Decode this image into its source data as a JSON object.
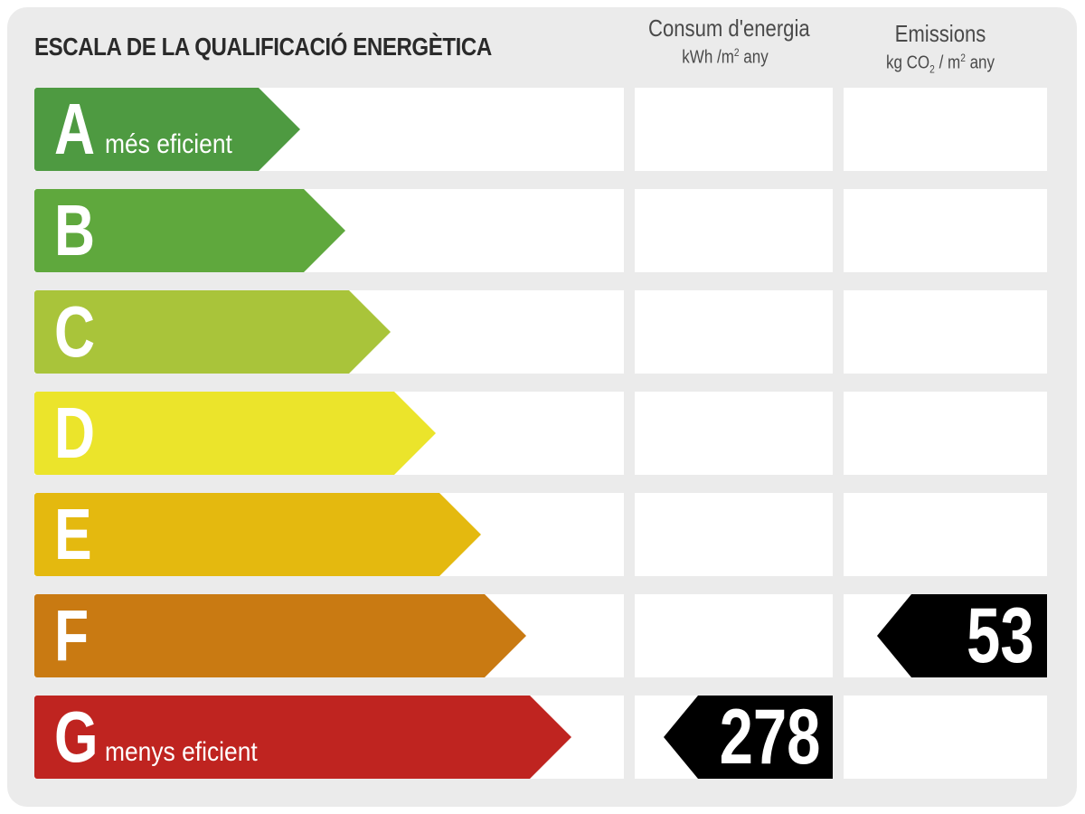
{
  "title": "ESCALA DE LA QUALIFICACIÓ ENERGÈTICA",
  "columns": {
    "consum": {
      "title": "Consum d'energia",
      "unit_pre": "kWh /m",
      "unit_sup": "2",
      "unit_post": " any"
    },
    "emissions": {
      "title": "Emissions",
      "unit_pre": "kg CO",
      "unit_sub": "2",
      "unit_mid": " / m",
      "unit_sup": "2",
      "unit_post": " any"
    }
  },
  "chart_data": {
    "type": "bar",
    "categories": [
      "A",
      "B",
      "C",
      "D",
      "E",
      "F",
      "G"
    ],
    "category_sublabels": {
      "A": "més eficient",
      "G": "menys eficient"
    },
    "colors": [
      "#4e9a41",
      "#5fa83d",
      "#a9c43a",
      "#ebe42b",
      "#e4b90f",
      "#c97a12",
      "#bf2420"
    ],
    "ratings": [
      {
        "column": "Consum d'energia",
        "class": "G",
        "value": 278
      },
      {
        "column": "Emissions",
        "class": "F",
        "value": 53
      }
    ]
  },
  "markers": {
    "consum_value": "278",
    "emissions_value": "53"
  }
}
